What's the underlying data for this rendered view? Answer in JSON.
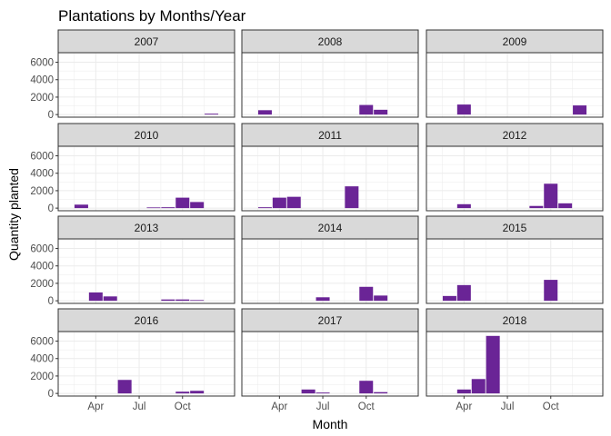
{
  "colors": {
    "bar": "#6a2496",
    "strip_fill": "#d9d9d9",
    "panel_border": "#333333",
    "grid": "#ebebeb"
  },
  "chart_data": {
    "type": "bar",
    "title": "Plantations by Months/Year",
    "xlabel": "Month",
    "ylabel": "Quantity planted",
    "x_ticks": [
      {
        "label": "Apr",
        "month": 4
      },
      {
        "label": "Jul",
        "month": 7
      },
      {
        "label": "Oct",
        "month": 10
      }
    ],
    "y_ticks": [
      0,
      2000,
      4000,
      6000
    ],
    "ylim": [
      -300,
      7100
    ],
    "xlim": [
      1.4,
      13.6
    ],
    "grid": true,
    "facet_columns": 3,
    "panels": [
      {
        "year": "2007",
        "bars": [
          {
            "month": 12,
            "value": 100
          }
        ]
      },
      {
        "year": "2008",
        "bars": [
          {
            "month": 3,
            "value": 500
          },
          {
            "month": 10,
            "value": 1100
          },
          {
            "month": 11,
            "value": 550
          }
        ]
      },
      {
        "year": "2009",
        "bars": [
          {
            "month": 4,
            "value": 1150
          },
          {
            "month": 12,
            "value": 1050
          }
        ]
      },
      {
        "year": "2010",
        "bars": [
          {
            "month": 3,
            "value": 400
          },
          {
            "month": 8,
            "value": 80
          },
          {
            "month": 9,
            "value": 100
          },
          {
            "month": 10,
            "value": 1200
          },
          {
            "month": 11,
            "value": 700
          }
        ]
      },
      {
        "year": "2011",
        "bars": [
          {
            "month": 3,
            "value": 100
          },
          {
            "month": 4,
            "value": 1200
          },
          {
            "month": 5,
            "value": 1300
          },
          {
            "month": 9,
            "value": 2500
          }
        ]
      },
      {
        "year": "2012",
        "bars": [
          {
            "month": 4,
            "value": 450
          },
          {
            "month": 9,
            "value": 250
          },
          {
            "month": 10,
            "value": 2800
          },
          {
            "month": 11,
            "value": 550
          }
        ]
      },
      {
        "year": "2013",
        "bars": [
          {
            "month": 4,
            "value": 950
          },
          {
            "month": 5,
            "value": 500
          },
          {
            "month": 9,
            "value": 150
          },
          {
            "month": 10,
            "value": 150
          },
          {
            "month": 11,
            "value": 80
          }
        ]
      },
      {
        "year": "2014",
        "bars": [
          {
            "month": 7,
            "value": 400
          },
          {
            "month": 10,
            "value": 1600
          },
          {
            "month": 11,
            "value": 600
          }
        ]
      },
      {
        "year": "2015",
        "bars": [
          {
            "month": 3,
            "value": 550
          },
          {
            "month": 4,
            "value": 1800
          },
          {
            "month": 10,
            "value": 2400
          }
        ]
      },
      {
        "year": "2016",
        "bars": [
          {
            "month": 6,
            "value": 1550
          },
          {
            "month": 10,
            "value": 200
          },
          {
            "month": 11,
            "value": 300
          }
        ]
      },
      {
        "year": "2017",
        "bars": [
          {
            "month": 6,
            "value": 450
          },
          {
            "month": 7,
            "value": 100
          },
          {
            "month": 10,
            "value": 1450
          },
          {
            "month": 11,
            "value": 150
          }
        ]
      },
      {
        "year": "2018",
        "bars": [
          {
            "month": 4,
            "value": 450
          },
          {
            "month": 5,
            "value": 1650
          },
          {
            "month": 6,
            "value": 6600
          }
        ]
      }
    ]
  }
}
